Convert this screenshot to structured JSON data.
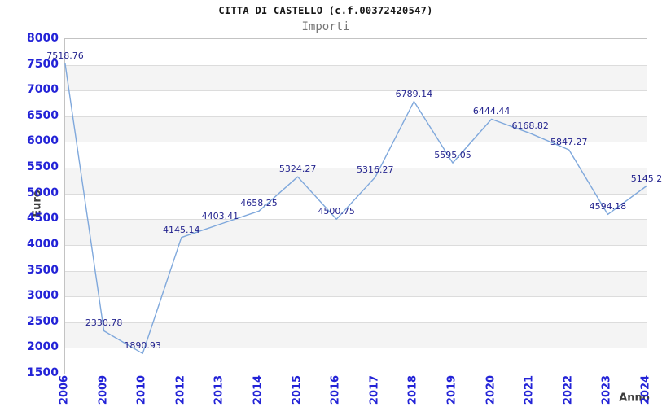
{
  "header": {
    "title": "CITTA DI CASTELLO (c.f.00372420547)",
    "subtitle": "Importi"
  },
  "chart_data": {
    "type": "line",
    "title": "CITTA DI CASTELLO (c.f.00372420547)",
    "subtitle": "Importi",
    "xlabel": "Anno",
    "ylabel": "Euro",
    "categories": [
      "2006",
      "2009",
      "2010",
      "2012",
      "2013",
      "2014",
      "2015",
      "2016",
      "2017",
      "2018",
      "2019",
      "2020",
      "2021",
      "2022",
      "2023",
      "2024"
    ],
    "values": [
      7518.76,
      2330.78,
      1890.93,
      4145.14,
      4403.41,
      4658.25,
      5324.27,
      4500.75,
      5316.27,
      6789.14,
      5595.05,
      6444.44,
      6168.82,
      5847.27,
      4594.18,
      5145.2
    ],
    "point_labels": [
      "7518.76",
      "2330.78",
      "1890.93",
      "4145.14",
      "4403.41",
      "4658.25",
      "5324.27",
      "4500.75",
      "5316.27",
      "6789.14",
      "5595.05",
      "6444.44",
      "6168.82",
      "5847.27",
      "4594.18",
      "5145.2"
    ],
    "ylim": [
      1500,
      8000
    ],
    "ytick_step": 500,
    "grid": true,
    "legend": null,
    "layout": "alternating horizontal bands, no markers, value labels above points, x labels rotated 90",
    "colors": {
      "line": "#7fa8dc",
      "tick_label": "#2323d7",
      "point_label": "#23238e",
      "axis_title": "#3d3d3d",
      "band_alt": "#f4f4f4",
      "gridline": "#dcdcdc",
      "plot_border": "#c3c3c3",
      "title": "#151515",
      "subtitle": "#757575"
    }
  }
}
